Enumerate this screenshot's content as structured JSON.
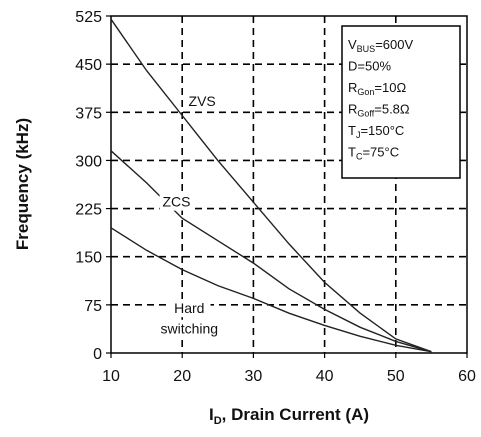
{
  "chart_data": {
    "type": "line",
    "xlabel": "Drain Current (A)",
    "xlabel_symbol": "I",
    "xlabel_subscript": "D",
    "xlabel_rest": ", Drain Current (A)",
    "ylabel": "Frequency (kHz)",
    "xlim": [
      10,
      60
    ],
    "ylim": [
      0,
      525
    ],
    "xticks": [
      10,
      20,
      30,
      40,
      50,
      60
    ],
    "yticks": [
      0,
      75,
      150,
      225,
      300,
      375,
      450,
      525
    ],
    "grid": "dashed",
    "series": [
      {
        "name": "ZVS",
        "x": [
          10,
          15,
          20,
          25,
          30,
          35,
          40,
          45,
          50,
          55
        ],
        "y": [
          520,
          440,
          370,
          300,
          235,
          170,
          110,
          62,
          22,
          2
        ]
      },
      {
        "name": "ZCS",
        "x": [
          10,
          15,
          20,
          25,
          30,
          35,
          40,
          45,
          50,
          55
        ],
        "y": [
          315,
          265,
          210,
          175,
          140,
          100,
          68,
          40,
          18,
          2
        ]
      },
      {
        "name": "Hard switching",
        "x": [
          10,
          15,
          20,
          25,
          30,
          35,
          40,
          45,
          50,
          55
        ],
        "y": [
          195,
          160,
          130,
          105,
          85,
          62,
          43,
          26,
          12,
          2
        ]
      }
    ],
    "annotations": [
      {
        "text": "ZVS",
        "x": 22.8,
        "y": 385
      },
      {
        "text": "ZCS",
        "x": 19.2,
        "y": 228
      },
      {
        "text": "Hard",
        "x": 21.0,
        "y": 62
      },
      {
        "text": "switching",
        "x": 21.0,
        "y": 30
      }
    ],
    "legend_box": {
      "position": "top-right",
      "lines": [
        {
          "main": "V",
          "sub": "BUS",
          "rest": "=600V"
        },
        {
          "main": "D=50%",
          "sub": "",
          "rest": ""
        },
        {
          "main": "R",
          "sub": "Gon",
          "rest": "=10Ω"
        },
        {
          "main": "R",
          "sub": "Goff",
          "rest": "=5.8Ω"
        },
        {
          "main": "T",
          "sub": "J",
          "rest": "=150°C"
        },
        {
          "main": "T",
          "sub": "C",
          "rest": "=75°C"
        }
      ]
    }
  }
}
